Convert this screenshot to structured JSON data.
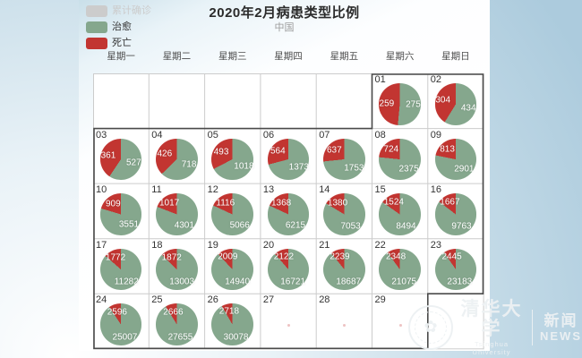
{
  "title": "2020年2月病患类型比例",
  "subtitle": "中国",
  "legend": {
    "items": [
      {
        "label": "累计确诊",
        "color": "#cccccc",
        "dimmed": true
      },
      {
        "label": "治愈",
        "color": "#85a78d",
        "dimmed": false
      },
      {
        "label": "死亡",
        "color": "#c23531",
        "dimmed": false
      }
    ]
  },
  "weekdays": [
    "星期一",
    "星期二",
    "星期三",
    "星期四",
    "星期五",
    "星期六",
    "星期日"
  ],
  "colors": {
    "died": "#c23531",
    "cured": "#85a78d",
    "dimmed": "#cccccc"
  },
  "watermark": {
    "org_cn": "清华大学",
    "org_en": "Tsinghua University",
    "news_cn": "新闻",
    "news_en": "NEWS"
  },
  "chart_data": {
    "type": "pie",
    "layout": "calendar-grid",
    "month": "2020-02",
    "first_day_column": 6,
    "series_names": {
      "red": "死亡",
      "green": "治愈",
      "dimmed_legend": "累计确诊"
    },
    "days": [
      {
        "date": "01",
        "died": 259,
        "cured": 275
      },
      {
        "date": "02",
        "died": 304,
        "cured": 434
      },
      {
        "date": "03",
        "died": 361,
        "cured": 527
      },
      {
        "date": "04",
        "died": 426,
        "cured": 718
      },
      {
        "date": "05",
        "died": 493,
        "cured": 1018
      },
      {
        "date": "06",
        "died": 564,
        "cured": 1373
      },
      {
        "date": "07",
        "died": 637,
        "cured": 1753
      },
      {
        "date": "08",
        "died": 724,
        "cured": 2375
      },
      {
        "date": "09",
        "died": 813,
        "cured": 2901
      },
      {
        "date": "10",
        "died": 909,
        "cured": 3551
      },
      {
        "date": "11",
        "died": 1017,
        "cured": 4301
      },
      {
        "date": "12",
        "died": 1116,
        "cured": 5066
      },
      {
        "date": "13",
        "died": 1368,
        "cured": 6215
      },
      {
        "date": "14",
        "died": 1380,
        "cured": 7053
      },
      {
        "date": "15",
        "died": 1524,
        "cured": 8494
      },
      {
        "date": "16",
        "died": 1667,
        "cured": 9763
      },
      {
        "date": "17",
        "died": 1772,
        "cured": 11282
      },
      {
        "date": "18",
        "died": 1872,
        "cured": 13003
      },
      {
        "date": "19",
        "died": 2009,
        "cured": 14940
      },
      {
        "date": "20",
        "died": 2122,
        "cured": 16721
      },
      {
        "date": "21",
        "died": 2239,
        "cured": 18687
      },
      {
        "date": "22",
        "died": 2348,
        "cured": 21075
      },
      {
        "date": "23",
        "died": 2445,
        "cured": 23183
      },
      {
        "date": "24",
        "died": 2596,
        "cured": 25007
      },
      {
        "date": "25",
        "died": 2666,
        "cured": 27655
      },
      {
        "date": "26",
        "died": 2718,
        "cured": 30078
      },
      {
        "date": "27"
      },
      {
        "date": "28"
      },
      {
        "date": "29"
      }
    ]
  }
}
